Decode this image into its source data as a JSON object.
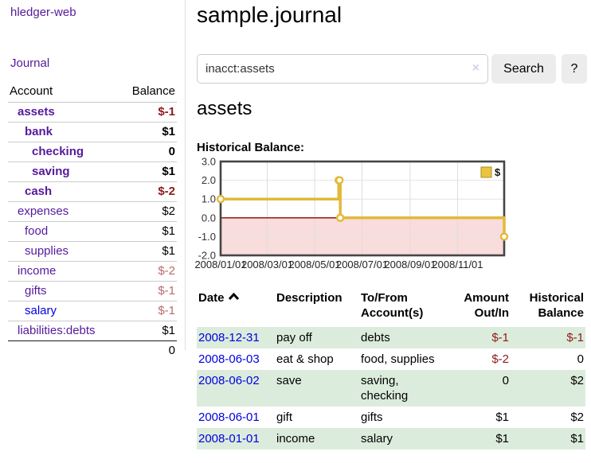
{
  "app": {
    "title": "hledger-web"
  },
  "sidebar": {
    "nav": {
      "journal": "Journal"
    },
    "accounts_table": {
      "headers": {
        "account": "Account",
        "balance": "Balance"
      },
      "rows": [
        {
          "name": "assets",
          "balance": "$-1"
        },
        {
          "name": "bank",
          "balance": "$1"
        },
        {
          "name": "checking",
          "balance": "0"
        },
        {
          "name": "saving",
          "balance": "$1"
        },
        {
          "name": "cash",
          "balance": "$-2"
        },
        {
          "name": "expenses",
          "balance": "$2"
        },
        {
          "name": "food",
          "balance": "$1"
        },
        {
          "name": "supplies",
          "balance": "$1"
        },
        {
          "name": "income",
          "balance": "$-2"
        },
        {
          "name": "gifts",
          "balance": "$-1"
        },
        {
          "name": "salary",
          "balance": "$-1"
        },
        {
          "name": "liabilities:debts",
          "balance": "$1"
        }
      ],
      "total": "0"
    }
  },
  "main": {
    "title": "sample.journal",
    "search": {
      "value": "inacct:assets",
      "clear_icon": "×",
      "button": "Search",
      "help_button": "?"
    },
    "account_heading": "assets",
    "chart_heading": "Historical Balance:",
    "register": {
      "headers": {
        "date": "Date",
        "description": "Description",
        "accounts": "To/From Account(s)",
        "amount": "Amount Out/In",
        "balance": "Historical Balance"
      },
      "rows": [
        {
          "date": "2008-12-31",
          "description": "pay off",
          "accounts": "debts",
          "amount": "$-1",
          "balance": "$-1"
        },
        {
          "date": "2008-06-03",
          "description": "eat & shop",
          "accounts": "food, supplies",
          "amount": "$-2",
          "balance": "0"
        },
        {
          "date": "2008-06-02",
          "description": "save",
          "accounts": "saving, checking",
          "amount": "0",
          "balance": "$2"
        },
        {
          "date": "2008-06-01",
          "description": "gift",
          "accounts": "gifts",
          "amount": "$1",
          "balance": "$2"
        },
        {
          "date": "2008-01-01",
          "description": "income",
          "accounts": "salary",
          "amount": "$1",
          "balance": "$1"
        }
      ]
    }
  },
  "chart_data": {
    "type": "line",
    "title": "Historical Balance:",
    "series": [
      {
        "name": "$",
        "step": true,
        "color": "#e2b939",
        "points": [
          [
            "2008-01-01",
            1
          ],
          [
            "2008-06-01",
            2
          ],
          [
            "2008-06-02",
            2
          ],
          [
            "2008-06-03",
            0
          ],
          [
            "2008-12-31",
            -1
          ]
        ]
      }
    ],
    "xlim": [
      "2008-01-01",
      "2008-12-31"
    ],
    "ylim": [
      -2,
      3
    ],
    "yticks": [
      3.0,
      2.0,
      1.0,
      0.0,
      -1.0,
      -2.0
    ],
    "xticks": [
      "2008/01/01",
      "2008/03/01",
      "2008/05/01",
      "2008/07/01",
      "2008/09/01",
      "2008/11/01"
    ],
    "grid": true,
    "legend_position": "top-right",
    "legend": {
      "label": "$",
      "swatch_color": "#e9c53f"
    },
    "negative_region_fill": "#f9dcdc",
    "zero_line_color": "#8b0000"
  },
  "colors": {
    "link_visited": "#551a9b",
    "link_new": "#0000e0",
    "negative": "#8f1a1a",
    "negative_muted": "#bb6a6a",
    "row_stripe": "#dcecdc",
    "chart_line": "#e2b939",
    "chart_negative_bg": "#f9dcdc",
    "chart_zero_line": "#8b0000"
  }
}
